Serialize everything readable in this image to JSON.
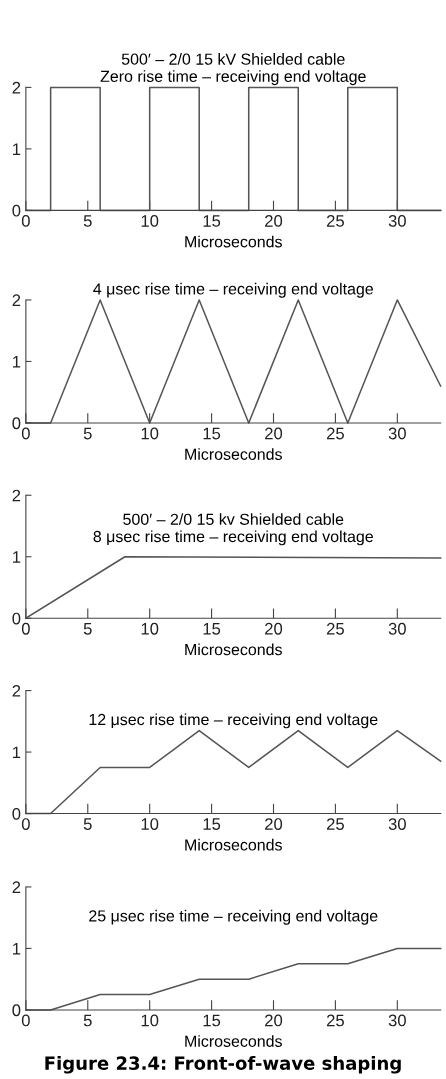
{
  "chart_data": [
    {
      "type": "line",
      "title": "500′ – 2/0 15 kV Shielded cable\nZero rise time – receiving end voltage",
      "xlabel": "Microseconds",
      "xlim": [
        0,
        33.5
      ],
      "ylim": [
        0,
        2
      ],
      "xticks": [
        0,
        5,
        10,
        15,
        20,
        25,
        30
      ],
      "yticks": [
        0,
        1,
        2
      ],
      "grid": false,
      "legend": false,
      "series": [
        {
          "color": "#555555",
          "x": [
            0,
            2,
            2,
            6,
            6,
            10,
            10,
            14,
            14,
            18,
            18,
            22,
            22,
            26,
            26,
            30,
            30,
            33.5
          ],
          "values": [
            0,
            0,
            2,
            2,
            0,
            0,
            2,
            2,
            0,
            0,
            2,
            2,
            0,
            0,
            2,
            2,
            0,
            0
          ]
        }
      ]
    },
    {
      "type": "line",
      "title": "4 μsec rise time – receiving end voltage",
      "xlabel": "Microseconds",
      "xlim": [
        0,
        33.5
      ],
      "ylim": [
        0,
        2
      ],
      "xticks": [
        0,
        5,
        10,
        15,
        20,
        25,
        30
      ],
      "yticks": [
        0,
        1,
        2
      ],
      "grid": false,
      "legend": false,
      "series": [
        {
          "color": "#555555",
          "x": [
            0,
            2,
            6,
            10,
            14,
            18,
            22,
            26,
            30,
            33.5
          ],
          "values": [
            0,
            0,
            2,
            0,
            2,
            0,
            2,
            0,
            2,
            0.6
          ]
        }
      ]
    },
    {
      "type": "line",
      "title": "500′ – 2/0 15 kv Shielded cable\n8 μsec rise time – receiving end voltage",
      "xlabel": "Microseconds",
      "xlim": [
        0,
        33.5
      ],
      "ylim": [
        0,
        2
      ],
      "xticks": [
        0,
        5,
        10,
        15,
        20,
        25,
        30
      ],
      "yticks": [
        0,
        1,
        2
      ],
      "grid": false,
      "legend": false,
      "series": [
        {
          "color": "#555555",
          "x": [
            0,
            8,
            33.5
          ],
          "values": [
            0,
            1,
            0.98
          ]
        }
      ]
    },
    {
      "type": "line",
      "title": "12 μsec rise time – receiving end voltage",
      "xlabel": "Microseconds",
      "xlim": [
        0,
        33.5
      ],
      "ylim": [
        0,
        2
      ],
      "xticks": [
        0,
        5,
        10,
        15,
        20,
        25,
        30
      ],
      "yticks": [
        0,
        1,
        2
      ],
      "grid": false,
      "legend": false,
      "series": [
        {
          "color": "#555555",
          "x": [
            0,
            2,
            6,
            10,
            14,
            18,
            22,
            26,
            30,
            33.5
          ],
          "values": [
            0,
            0,
            0.75,
            0.75,
            1.35,
            0.75,
            1.35,
            0.75,
            1.35,
            0.85
          ]
        }
      ]
    },
    {
      "type": "line",
      "title": "25 μsec rise time – receiving end voltage",
      "xlabel": "Microseconds",
      "xlim": [
        0,
        33.5
      ],
      "ylim": [
        0,
        2
      ],
      "xticks": [
        0,
        5,
        10,
        15,
        20,
        25,
        30
      ],
      "yticks": [
        0,
        1,
        2
      ],
      "grid": false,
      "legend": false,
      "annotations": [
        "Figure 23.4: Front-of-wave shaping"
      ],
      "series": [
        {
          "color": "#555555",
          "x": [
            0,
            2,
            6,
            10,
            14,
            18,
            22,
            26,
            30,
            33.5
          ],
          "values": [
            0,
            0,
            0.25,
            0.25,
            0.5,
            0.5,
            0.75,
            0.75,
            1,
            1
          ]
        }
      ]
    }
  ]
}
